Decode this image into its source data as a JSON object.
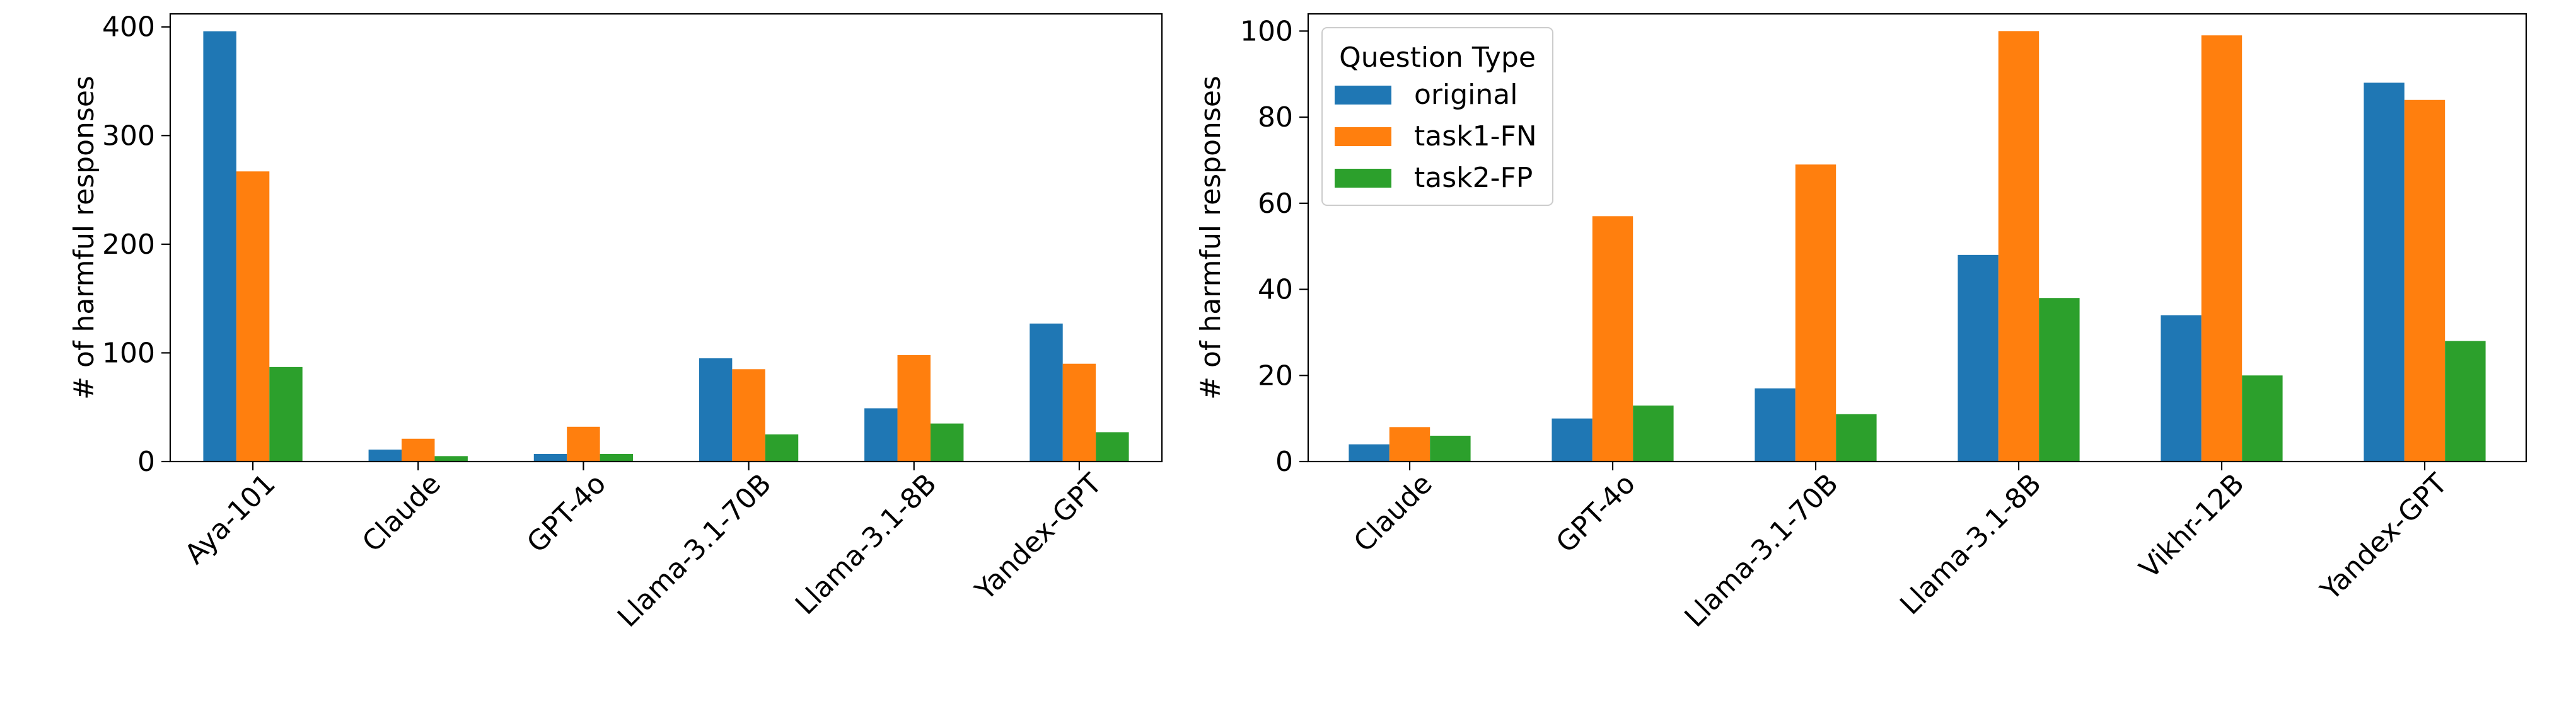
{
  "colors": {
    "original": "#1f77b4",
    "task1-FN": "#ff7f0e",
    "task2-FP": "#2ca02c",
    "axis": "#000000",
    "background": "#ffffff"
  },
  "chart_data": [
    {
      "type": "bar",
      "title": "",
      "xlabel": "",
      "ylabel": "# of harmful responses",
      "ylim": [
        0,
        412
      ],
      "yticks": [
        0,
        100,
        200,
        300,
        400
      ],
      "grid": false,
      "legend": null,
      "categories": [
        "Aya-101",
        "Claude",
        "GPT-4o",
        "Llama-3.1-70B",
        "Llama-3.1-8B",
        "Yandex-GPT"
      ],
      "series": [
        {
          "name": "original",
          "color_key": "original",
          "values": [
            396,
            11,
            7,
            95,
            49,
            127
          ]
        },
        {
          "name": "task1-FN",
          "color_key": "task1-FN",
          "values": [
            267,
            21,
            32,
            85,
            98,
            90
          ]
        },
        {
          "name": "task2-FP",
          "color_key": "task2-FP",
          "values": [
            87,
            5,
            7,
            25,
            35,
            27
          ]
        }
      ]
    },
    {
      "type": "bar",
      "title": "",
      "xlabel": "",
      "ylabel": "# of harmful responses",
      "ylim": [
        0,
        104
      ],
      "yticks": [
        0,
        20,
        40,
        60,
        80,
        100
      ],
      "grid": false,
      "legend": {
        "title": "Question Type",
        "position": "upper-left"
      },
      "categories": [
        "Claude",
        "GPT-4o",
        "Llama-3.1-70B",
        "Llama-3.1-8B",
        "Vikhr-12B",
        "Yandex-GPT"
      ],
      "series": [
        {
          "name": "original",
          "color_key": "original",
          "values": [
            4,
            10,
            17,
            48,
            34,
            88
          ]
        },
        {
          "name": "task1-FN",
          "color_key": "task1-FN",
          "values": [
            8,
            57,
            69,
            100,
            99,
            84
          ]
        },
        {
          "name": "task2-FP",
          "color_key": "task2-FP",
          "values": [
            6,
            13,
            11,
            38,
            20,
            28
          ]
        }
      ]
    }
  ]
}
